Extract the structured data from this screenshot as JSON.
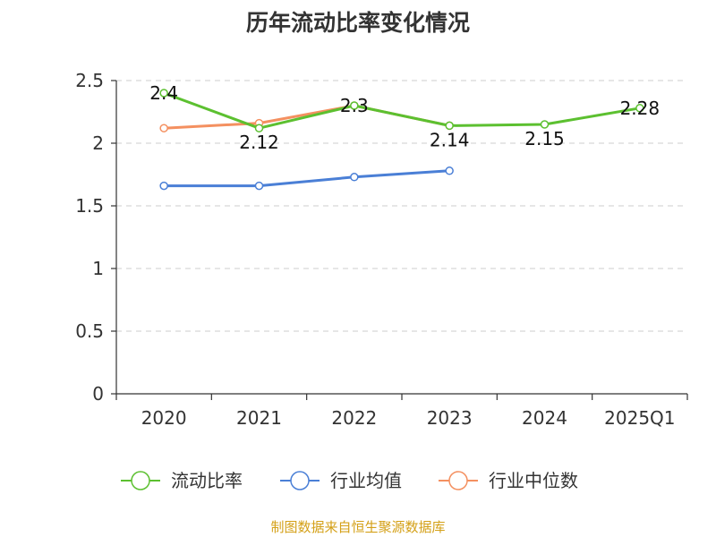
{
  "chart_data": {
    "type": "line",
    "title": "历年流动比率变化情况",
    "categories": [
      "2020",
      "2021",
      "2022",
      "2023",
      "2024",
      "2025Q1"
    ],
    "ylim": [
      0,
      2.5
    ],
    "yticks": [
      "0",
      "0.5",
      "1",
      "1.5",
      "2",
      "2.5"
    ],
    "grid": true,
    "legend_position": "bottom",
    "series": [
      {
        "name": "流动比率",
        "color": "#5cc030",
        "values": [
          2.4,
          2.12,
          2.3,
          2.14,
          2.15,
          2.28
        ],
        "labels": [
          "2.4",
          "2.12",
          "2.3",
          "2.14",
          "2.15",
          "2.28"
        ]
      },
      {
        "name": "行业均值",
        "color": "#4a7fd6",
        "values": [
          1.66,
          1.66,
          1.73,
          1.78,
          null,
          null
        ]
      },
      {
        "name": "行业中位数",
        "color": "#f49060",
        "values": [
          2.12,
          2.16,
          2.3,
          2.14,
          null,
          null
        ]
      }
    ]
  },
  "footer": {
    "source": "制图数据来自恒生聚源数据库",
    "source_color": "#d4a017"
  }
}
